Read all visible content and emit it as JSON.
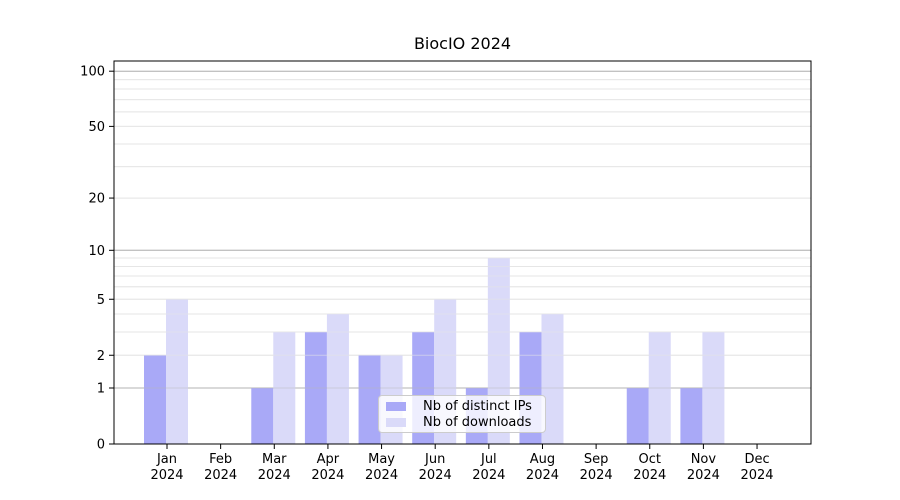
{
  "title": "BiocIO 2024",
  "chart_data": {
    "type": "bar",
    "title": "BiocIO 2024",
    "categories": [
      "Jan",
      "Feb",
      "Mar",
      "Apr",
      "May",
      "Jun",
      "Jul",
      "Aug",
      "Sep",
      "Oct",
      "Nov",
      "Dec"
    ],
    "category_year": "2024",
    "series": [
      {
        "name": "Nb of distinct IPs",
        "color": "#a9a9f7",
        "values": [
          2,
          0,
          1,
          3,
          2,
          3,
          1,
          3,
          0,
          1,
          1,
          0
        ]
      },
      {
        "name": "Nb of downloads",
        "color": "#dadaf9",
        "values": [
          5,
          0,
          3,
          4,
          2,
          5,
          9,
          4,
          0,
          3,
          3,
          0
        ]
      }
    ],
    "yscale": "log1p",
    "ylim": [
      0,
      115
    ],
    "y_ticks": [
      0,
      1,
      2,
      5,
      10,
      20,
      50,
      100
    ],
    "y_decade_ticks": [
      1,
      10,
      100
    ],
    "y_minor_ticks": [
      2,
      3,
      4,
      5,
      6,
      7,
      8,
      9,
      20,
      30,
      40,
      50,
      60,
      70,
      80,
      90
    ],
    "grid": "horizontal",
    "legend_position": "lower center"
  },
  "colors": {
    "background": "#ffffff",
    "axis": "#000000",
    "major_grid": "#b3b3b3",
    "minor_grid": "#e6e6e6"
  }
}
